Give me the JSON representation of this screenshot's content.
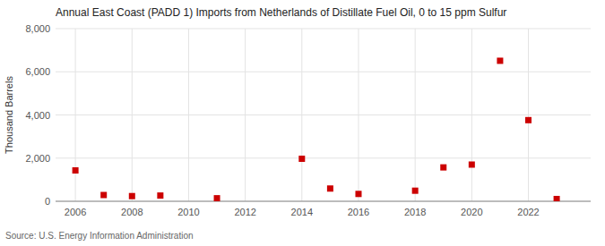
{
  "chart_data": {
    "type": "scatter",
    "title": "Annual East Coast (PADD 1) Imports from Netherlands of Distillate Fuel Oil, 0 to 15 ppm Sulfur",
    "ylabel": "Thousand Barrels",
    "source": "Source: U.S. Energy Information Administration",
    "x": [
      2006,
      2007,
      2008,
      2009,
      2011,
      2014,
      2015,
      2016,
      2018,
      2019,
      2020,
      2021,
      2022,
      2023
    ],
    "values": [
      1430,
      290,
      240,
      265,
      140,
      1970,
      590,
      340,
      490,
      1570,
      1700,
      6510,
      3760,
      105
    ],
    "color": "#cc0000",
    "marker": "square",
    "xlim": [
      2005.3,
      2024.2
    ],
    "xticks": [
      2006,
      2008,
      2010,
      2012,
      2014,
      2016,
      2018,
      2020,
      2022
    ],
    "ylim": [
      0,
      8000
    ],
    "yticks": [
      0,
      {
        "value": 2000,
        "label": "2,000"
      },
      {
        "value": 4000,
        "label": "4,000"
      },
      {
        "value": 6000,
        "label": "6,000"
      },
      {
        "value": 8000,
        "label": "8,000"
      }
    ],
    "grid": true
  }
}
